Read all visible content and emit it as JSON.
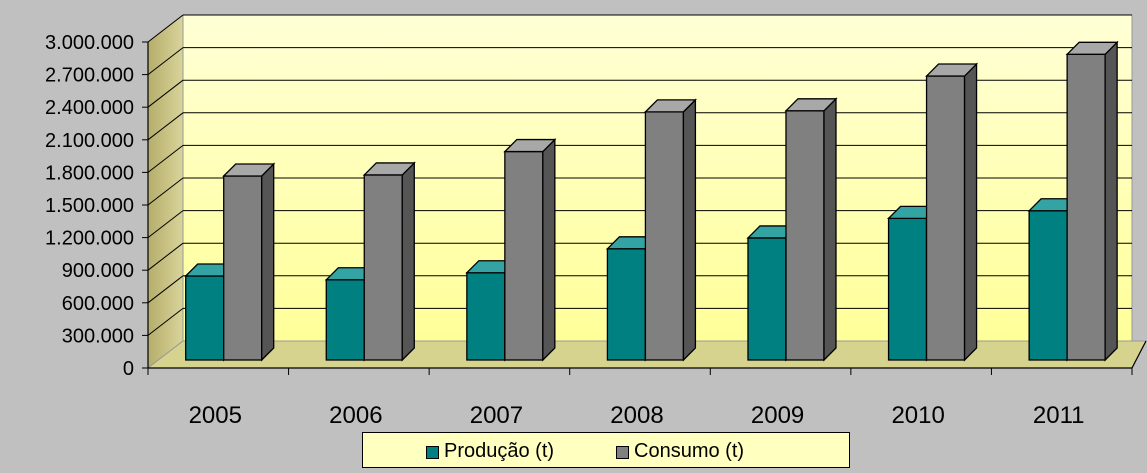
{
  "chart_data": {
    "type": "bar",
    "categories": [
      "2005",
      "2006",
      "2007",
      "2008",
      "2009",
      "2010",
      "2011"
    ],
    "series": [
      {
        "name": "Produção (t)",
        "color": "#008080",
        "values": [
          810000,
          775000,
          840000,
          1060000,
          1160000,
          1340000,
          1410000
        ]
      },
      {
        "name": "Consumo (t)",
        "color": "#808080",
        "values": [
          1730000,
          1740000,
          1955000,
          2320000,
          2330000,
          2650000,
          2850000
        ]
      }
    ],
    "yticks": [
      "0",
      "300.000",
      "600.000",
      "900.000",
      "1.200.000",
      "1.500.000",
      "1.800.000",
      "2.100.000",
      "2.400.000",
      "2.700.000",
      "3.000.000"
    ],
    "ylim": [
      0,
      3000000
    ],
    "grid": true,
    "style": "3d-column",
    "legend_position": "bottom",
    "colors": {
      "background": "#c0c0c0",
      "wall": "#ffffc0",
      "floor": "#d6d38f",
      "side_wall": "#c8c07c"
    }
  }
}
